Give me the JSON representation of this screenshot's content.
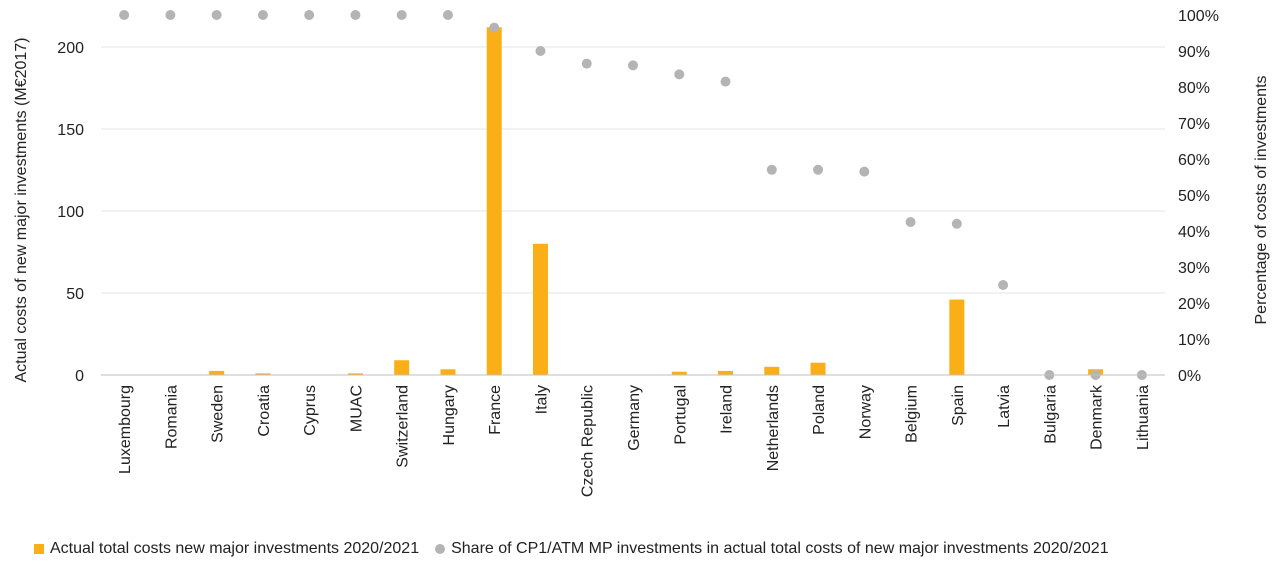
{
  "colors": {
    "bar": "#FBAF17",
    "dot": "#B4B4B4",
    "grid": "#E6E6E6",
    "axis": "#BFBFBF"
  },
  "chart_data": {
    "type": "bar",
    "categories": [
      "Luxembourg",
      "Romania",
      "Sweden",
      "Croatia",
      "Cyprus",
      "MUAC",
      "Switzerland",
      "Hungary",
      "France",
      "Italy",
      "Czech Republic",
      "Germany",
      "Portugal",
      "Ireland",
      "Netherlands",
      "Poland",
      "Norway",
      "Belgium",
      "Spain",
      "Latvia",
      "Bulgaria",
      "Denmark",
      "Lithuania"
    ],
    "series": [
      {
        "name": "Actual total costs new major investments 2020/2021",
        "type": "bar",
        "axis": "left",
        "values": [
          0.1,
          0.1,
          2.5,
          1,
          0.2,
          1,
          9,
          3.5,
          212,
          80,
          0.2,
          0.2,
          2,
          2.5,
          5,
          7.5,
          0.2,
          0.2,
          46,
          0.2,
          0.2,
          3.5,
          0.2
        ]
      },
      {
        "name": "Share of CP1/ATM MP investments in actual total costs of new major investments 2020/2021",
        "type": "scatter",
        "axis": "right",
        "values": [
          100,
          100,
          100,
          100,
          100,
          100,
          100,
          100,
          96.5,
          90,
          86.5,
          86,
          83.5,
          81.5,
          57,
          57,
          56.5,
          42.5,
          42,
          25,
          0,
          0,
          0
        ]
      }
    ],
    "ylabel": "Actual costs of new major investments (M€2017)",
    "y2label": "Percentage of costs of investments",
    "ylim": [
      0,
      220
    ],
    "yticks": [
      "0",
      "50",
      "100",
      "150",
      "200"
    ],
    "y2lim": [
      0,
      100
    ],
    "y2ticks": [
      "0%",
      "10%",
      "20%",
      "30%",
      "40%",
      "50%",
      "60%",
      "70%",
      "80%",
      "90%",
      "100%"
    ],
    "grid": true,
    "legend": "bottom"
  }
}
